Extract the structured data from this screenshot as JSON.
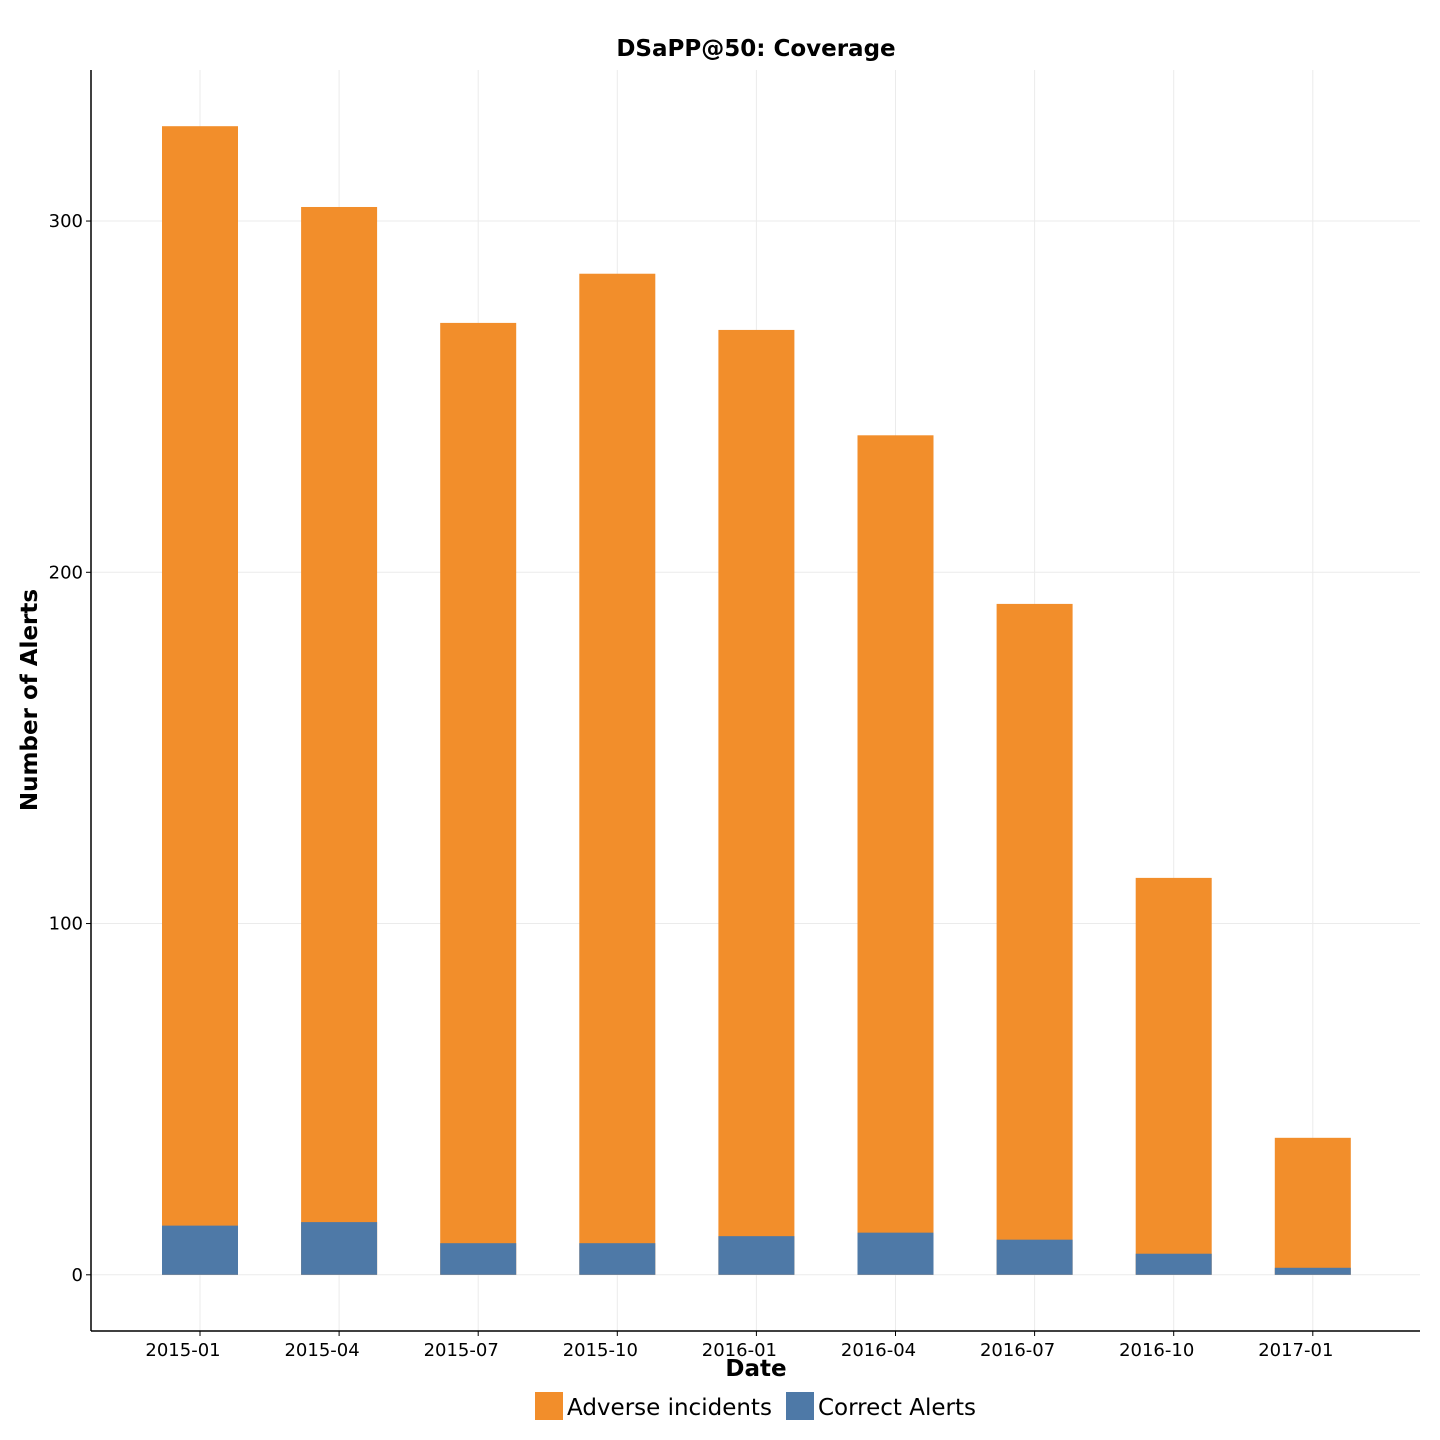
{
  "chart_data": {
    "type": "bar",
    "title": "DSaPP@50: Coverage",
    "xlabel": "Date",
    "ylabel": "Number of Alerts",
    "categories": [
      "2015-01",
      "2015-04",
      "2015-07",
      "2015-10",
      "2016-01",
      "2016-04",
      "2016-07",
      "2016-10",
      "2017-01"
    ],
    "series": [
      {
        "name": "Adverse incidents",
        "color": "#f28e2b",
        "values": [
          327,
          304,
          271,
          285,
          269,
          239,
          191,
          113,
          39
        ]
      },
      {
        "name": "Correct Alerts",
        "color": "#4e79a7",
        "values": [
          14,
          15,
          9,
          9,
          11,
          12,
          10,
          6,
          2
        ]
      }
    ],
    "ylim": [
      -16,
      343
    ],
    "yticks": [
      0,
      100,
      200,
      300
    ],
    "grid": true,
    "legend": "bottom"
  }
}
